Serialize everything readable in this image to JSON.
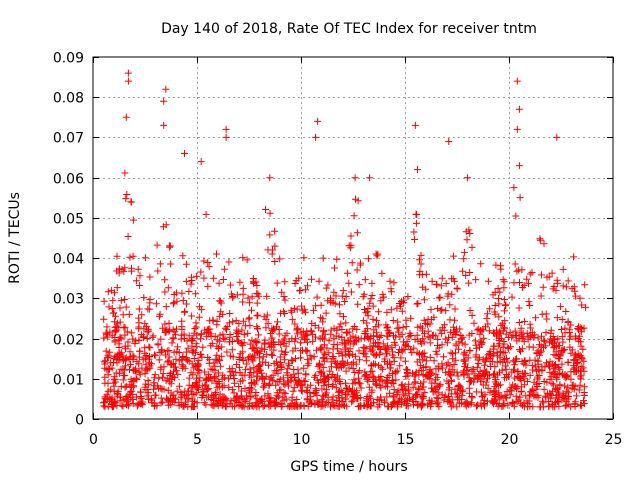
{
  "chart_data": {
    "type": "scatter",
    "title": "Day 140 of 2018, Rate Of TEC Index for receiver tntm",
    "xlabel": "GPS time / hours",
    "ylabel": "ROTI / TECUs",
    "xlim": [
      0,
      25
    ],
    "ylim": [
      0,
      0.09
    ],
    "grid": true,
    "marker": "plus",
    "color": "#ff0000",
    "x_ticks": [
      0,
      5,
      10,
      15,
      20,
      25
    ],
    "x_tick_labels": [
      "0",
      "5",
      "10",
      "15",
      "20",
      "25"
    ],
    "y_ticks": [
      0,
      0.01,
      0.02,
      0.03,
      0.04,
      0.05,
      0.06,
      0.07,
      0.08,
      0.09
    ],
    "y_tick_labels": [
      "0",
      "0.01",
      "0.02",
      "0.03",
      "0.04",
      "0.05",
      "0.06",
      "0.07",
      "0.08",
      "0.09"
    ],
    "x_data_range": [
      0.5,
      23.7
    ],
    "notable_points": [
      {
        "x": 1.7,
        "y": 0.086
      },
      {
        "x": 1.7,
        "y": 0.084
      },
      {
        "x": 1.6,
        "y": 0.075
      },
      {
        "x": 3.5,
        "y": 0.082
      },
      {
        "x": 3.4,
        "y": 0.079
      },
      {
        "x": 3.4,
        "y": 0.073
      },
      {
        "x": 4.4,
        "y": 0.066
      },
      {
        "x": 5.2,
        "y": 0.064
      },
      {
        "x": 6.4,
        "y": 0.072
      },
      {
        "x": 6.4,
        "y": 0.07
      },
      {
        "x": 8.5,
        "y": 0.06
      },
      {
        "x": 10.8,
        "y": 0.074
      },
      {
        "x": 10.7,
        "y": 0.07
      },
      {
        "x": 12.6,
        "y": 0.06
      },
      {
        "x": 13.3,
        "y": 0.06
      },
      {
        "x": 15.5,
        "y": 0.073
      },
      {
        "x": 15.6,
        "y": 0.062
      },
      {
        "x": 17.1,
        "y": 0.069
      },
      {
        "x": 18.0,
        "y": 0.06
      },
      {
        "x": 20.4,
        "y": 0.084
      },
      {
        "x": 20.5,
        "y": 0.077
      },
      {
        "x": 20.4,
        "y": 0.072
      },
      {
        "x": 20.5,
        "y": 0.063
      },
      {
        "x": 22.3,
        "y": 0.07
      }
    ]
  }
}
